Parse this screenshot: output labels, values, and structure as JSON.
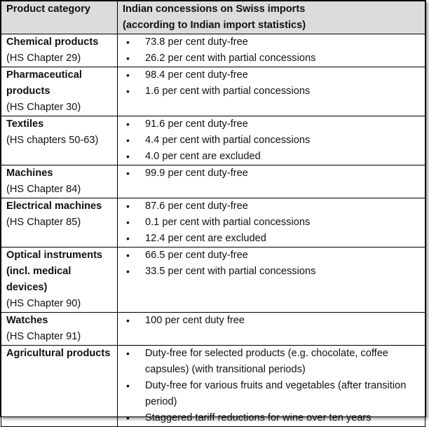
{
  "header": {
    "col1": "Product category",
    "col2_line1": "Indian concessions on Swiss imports",
    "col2_line2": "(according to Indian import statistics)"
  },
  "rows": [
    {
      "category": "Chemical products",
      "chapter": "(HS Chapter 29)",
      "items": [
        "73.8 per cent duty-free",
        "26.2 per cent with partial concessions"
      ]
    },
    {
      "category": "Pharmaceutical products",
      "chapter": "(HS Chapter 30)",
      "items": [
        "98.4 per cent duty-free",
        "1.6 per cent with partial concessions"
      ]
    },
    {
      "category": "Textiles",
      "chapter": "(HS chapters 50-63)",
      "items": [
        "91.6 per cent duty-free",
        "4.4 per cent with partial concessions",
        "4.0 per cent are excluded"
      ]
    },
    {
      "category": "Machines",
      "chapter": "(HS Chapter 84)",
      "items": [
        "99.9 per cent duty-free"
      ]
    },
    {
      "category": "Electrical machines",
      "chapter": "(HS Chapter 85)",
      "items": [
        "87.6 per cent duty-free",
        "0.1 per cent with partial concessions",
        "12.4 per cent are excluded"
      ]
    },
    {
      "category": "Optical instruments (incl. medical devices)",
      "chapter": "(HS Chapter 90)",
      "items": [
        "66.5 per cent duty-free",
        "33.5 per cent with partial concessions"
      ]
    },
    {
      "category": "Watches",
      "chapter": "(HS Chapter 91)",
      "items": [
        "100 per cent duty free"
      ]
    },
    {
      "category": "Agricultural products",
      "chapter": "",
      "items": [
        "Duty-free for selected products (e.g. chocolate, coffee capsules) (with transitional periods)",
        "Duty-free for various fruits and vegetables (after transition period)",
        "Staggered tariff reductions for wine over ten years"
      ]
    }
  ]
}
